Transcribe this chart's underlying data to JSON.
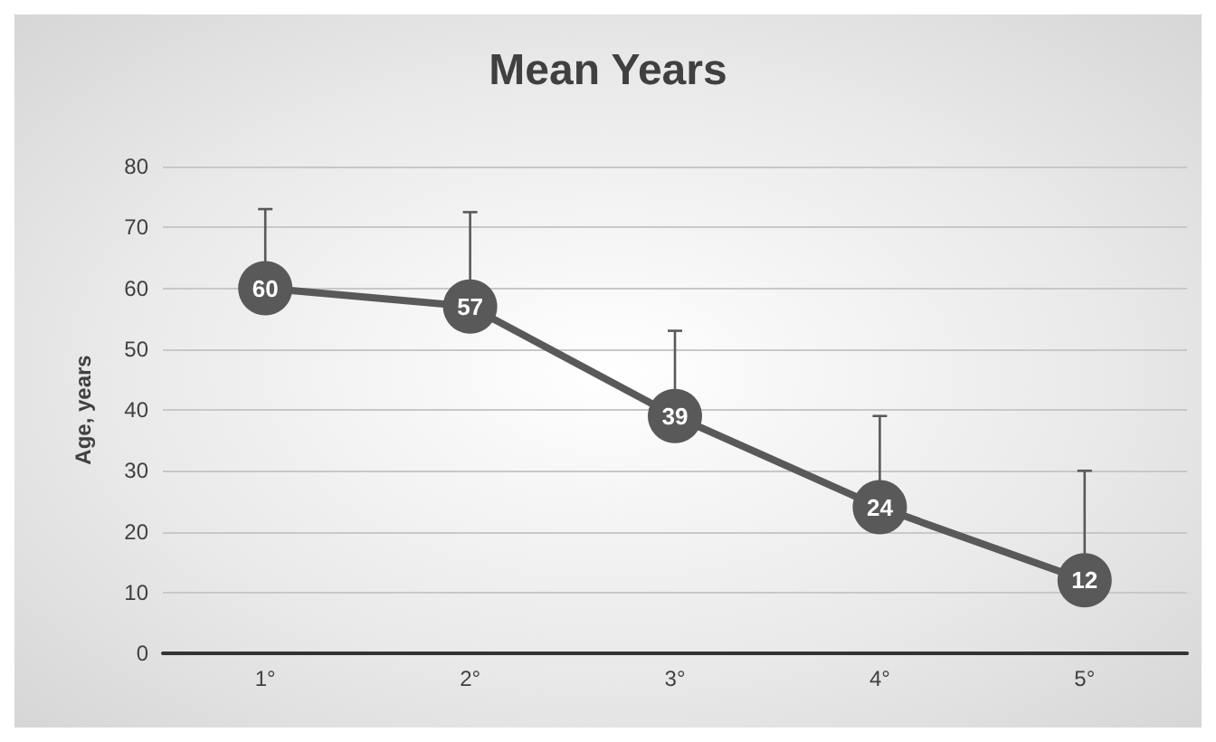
{
  "chart_data": {
    "type": "line",
    "title": "Mean Years",
    "ylabel": "Age, years",
    "categories": [
      "1°",
      "2°",
      "3°",
      "4°",
      "5°"
    ],
    "values": [
      60,
      57,
      39,
      24,
      12
    ],
    "errors": [
      [
        60,
        73
      ],
      [
        57,
        72.5
      ],
      [
        39,
        53
      ],
      [
        24,
        39
      ],
      [
        12,
        30
      ]
    ],
    "color": "#595959",
    "ylim": [
      0,
      80
    ],
    "yticks": [
      0,
      10,
      20,
      30,
      40,
      50,
      60,
      70,
      80
    ],
    "grid": "y",
    "marker": "circle",
    "line_style": "solid",
    "data_labels": true
  }
}
